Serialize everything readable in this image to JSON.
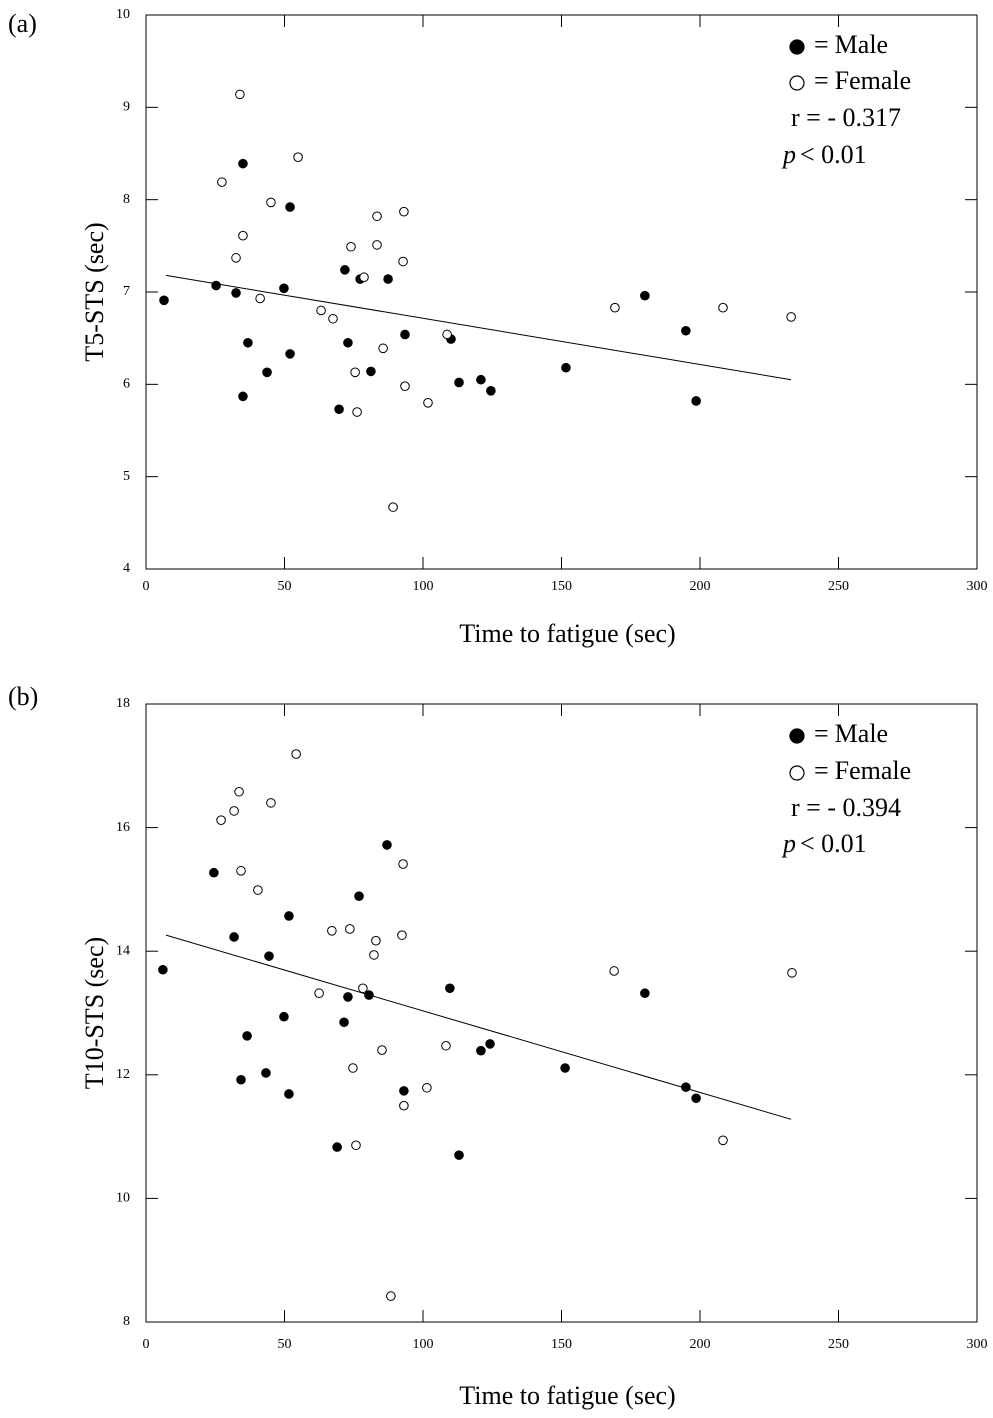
{
  "chart_data": [
    {
      "type": "scatter",
      "panel_label": "(a)",
      "x_label": "Time to fatigue (sec)",
      "y_label": "T5-STS (sec)",
      "xlim": [
        0,
        300
      ],
      "xticks": [
        0,
        50,
        100,
        150,
        200,
        250,
        300
      ],
      "ylim": [
        4,
        10
      ],
      "yticks": [
        4,
        5,
        6,
        7,
        8,
        9,
        10
      ],
      "legend_separator": "=",
      "series": [
        {
          "name": "Male",
          "marker": "filled",
          "color": "#000000",
          "x": [
            6.5,
            25.3,
            32.5,
            35.0,
            49.8,
            52.0,
            36.8,
            43.7,
            52.0,
            35.0,
            71.8,
            77.3,
            87.4,
            72.9,
            81.2,
            93.5,
            69.7,
            110.1,
            113.0,
            120.9,
            124.5,
            151.6,
            180.1,
            194.9,
            198.6
          ],
          "values": [
            6.91,
            7.07,
            6.99,
            8.39,
            7.04,
            7.92,
            6.45,
            6.13,
            6.33,
            5.87,
            7.24,
            7.14,
            7.14,
            6.45,
            6.14,
            6.54,
            5.73,
            6.49,
            6.02,
            6.05,
            5.93,
            6.18,
            6.96,
            6.58,
            5.82
          ]
        },
        {
          "name": "Female",
          "marker": "open",
          "color": "#000000",
          "x": [
            33.9,
            54.9,
            27.4,
            45.1,
            35.0,
            32.5,
            41.2,
            63.2,
            67.5,
            74.0,
            83.4,
            93.1,
            83.4,
            78.7,
            92.8,
            85.6,
            75.5,
            76.2,
            93.5,
            101.8,
            108.7,
            89.2,
            169.3,
            208.3,
            232.9
          ],
          "values": [
            9.14,
            8.46,
            8.19,
            7.97,
            7.61,
            7.37,
            6.93,
            6.8,
            6.71,
            7.49,
            7.82,
            7.87,
            7.51,
            7.16,
            7.33,
            6.39,
            6.13,
            5.7,
            5.98,
            5.8,
            6.54,
            4.67,
            6.83,
            6.83,
            6.73
          ]
        }
      ],
      "fit_line": {
        "x": [
          7.2,
          232.9
        ],
        "values": [
          7.18,
          6.05
        ]
      },
      "correlation": "r = - 0.317",
      "p_symbol": "p",
      "p_text": "< 0.01"
    },
    {
      "type": "scatter",
      "panel_label": "(b)",
      "x_label": "Time to fatigue (sec)",
      "y_label": "T10-STS (sec)",
      "xlim": [
        0,
        300
      ],
      "xticks": [
        0,
        50,
        100,
        150,
        200,
        250,
        300
      ],
      "ylim": [
        8,
        18
      ],
      "yticks": [
        8,
        10,
        12,
        14,
        16,
        18
      ],
      "legend_separator": "=",
      "series": [
        {
          "name": "Male",
          "marker": "filled",
          "color": "#000000",
          "x": [
            6.1,
            24.5,
            31.8,
            44.4,
            51.6,
            87.0,
            76.9,
            36.5,
            49.8,
            34.3,
            43.3,
            51.6,
            72.9,
            80.5,
            71.5,
            109.7,
            69.0,
            93.1,
            113.0,
            120.9,
            124.2,
            151.3,
            180.1,
            194.9,
            198.6
          ],
          "values": [
            13.7,
            15.27,
            14.23,
            13.92,
            14.57,
            15.72,
            14.89,
            12.63,
            12.94,
            11.92,
            12.03,
            11.69,
            13.26,
            13.29,
            12.85,
            13.4,
            10.83,
            11.74,
            10.7,
            12.39,
            12.5,
            12.11,
            13.32,
            11.8,
            11.62
          ]
        },
        {
          "name": "Female",
          "marker": "open",
          "color": "#000000",
          "x": [
            54.2,
            33.6,
            45.1,
            31.8,
            27.1,
            34.3,
            40.4,
            92.8,
            67.1,
            73.6,
            83.0,
            82.3,
            92.4,
            78.3,
            62.5,
            85.2,
            108.3,
            74.7,
            101.4,
            93.1,
            75.8,
            169.0,
            233.2,
            208.3,
            88.4
          ],
          "values": [
            17.19,
            16.58,
            16.4,
            16.27,
            16.12,
            15.3,
            14.99,
            15.41,
            14.33,
            14.36,
            14.17,
            13.94,
            14.26,
            13.4,
            13.32,
            12.4,
            12.47,
            12.11,
            11.79,
            11.5,
            10.86,
            13.68,
            13.65,
            10.94,
            8.42
          ]
        }
      ],
      "fit_line": {
        "x": [
          7.2,
          232.9
        ],
        "values": [
          14.26,
          11.28
        ]
      },
      "correlation": "r = - 0.394",
      "p_symbol": "p",
      "p_text": "< 0.01"
    }
  ]
}
